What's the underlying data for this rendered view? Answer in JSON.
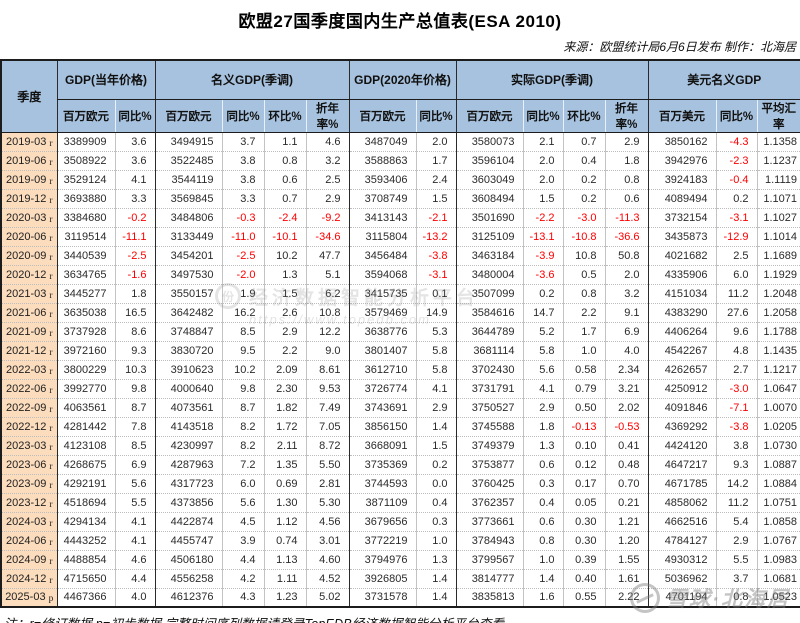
{
  "title": "欧盟27国季度国内生产总值表(ESA 2010)",
  "source_note": "来源：欧盟统计局6月6日发布 制作：北海居",
  "footer_note": "注：r=修订数据 p=初步数据 完整时间序列数据请登录TopEDB经济数据智能分析平台查看",
  "watermarks": {
    "center_badge": "份",
    "center_line1": "经济数据智能分析平台",
    "center_line2": "https://www.topedb.com",
    "corner_text": "雪球·北海居"
  },
  "colors": {
    "header_bg": "#a7c2de",
    "quarter_bg": "#fbdcbd",
    "negative": "#fe0000",
    "border_dark": "#1c1c1c"
  },
  "table": {
    "quarter_header": "季度",
    "groups": [
      {
        "label": "GDP(当年价格)",
        "subcols": [
          "百万欧元",
          "同比%"
        ]
      },
      {
        "label": "名义GDP(季调)",
        "subcols": [
          "百万欧元",
          "同比%",
          "环比%",
          "折年率%"
        ]
      },
      {
        "label": "GDP(2020年价格)",
        "subcols": [
          "百万欧元",
          "同比%"
        ]
      },
      {
        "label": "实际GDP(季调)",
        "subcols": [
          "百万欧元",
          "同比%",
          "环比%",
          "折年率%"
        ]
      },
      {
        "label": "美元名义GDP",
        "subcols": [
          "百万美元",
          "同比%",
          "平均汇率"
        ]
      }
    ],
    "group_start_indices": [
      0,
      2,
      6,
      8,
      12
    ],
    "rows": [
      {
        "quarter": "2019-03",
        "flag": "r",
        "values": [
          "3389909",
          "3.6",
          "3494915",
          "3.7",
          "1.1",
          "4.6",
          "3487049",
          "2.0",
          "3580073",
          "2.1",
          "0.7",
          "2.9",
          "3850162",
          "-4.3",
          "1.1358"
        ]
      },
      {
        "quarter": "2019-06",
        "flag": "r",
        "values": [
          "3508922",
          "3.6",
          "3522485",
          "3.8",
          "0.8",
          "3.2",
          "3588863",
          "1.7",
          "3596104",
          "2.0",
          "0.4",
          "1.8",
          "3942976",
          "-2.3",
          "1.1237"
        ]
      },
      {
        "quarter": "2019-09",
        "flag": "r",
        "values": [
          "3529124",
          "4.1",
          "3544119",
          "3.8",
          "0.6",
          "2.5",
          "3593406",
          "2.4",
          "3603049",
          "2.0",
          "0.2",
          "0.8",
          "3924183",
          "-0.4",
          "1.1119"
        ]
      },
      {
        "quarter": "2019-12",
        "flag": "r",
        "values": [
          "3693880",
          "3.3",
          "3569845",
          "3.3",
          "0.7",
          "2.9",
          "3708749",
          "1.5",
          "3608494",
          "1.5",
          "0.2",
          "0.6",
          "4089494",
          "0.2",
          "1.1071"
        ]
      },
      {
        "quarter": "2020-03",
        "flag": "r",
        "values": [
          "3384680",
          "-0.2",
          "3484806",
          "-0.3",
          "-2.4",
          "-9.2",
          "3413143",
          "-2.1",
          "3501690",
          "-2.2",
          "-3.0",
          "-11.3",
          "3732154",
          "-3.1",
          "1.1027"
        ]
      },
      {
        "quarter": "2020-06",
        "flag": "r",
        "values": [
          "3119514",
          "-11.1",
          "3133449",
          "-11.0",
          "-10.1",
          "-34.6",
          "3115804",
          "-13.2",
          "3125109",
          "-13.1",
          "-10.8",
          "-36.6",
          "3435873",
          "-12.9",
          "1.1014"
        ]
      },
      {
        "quarter": "2020-09",
        "flag": "r",
        "values": [
          "3440539",
          "-2.5",
          "3454201",
          "-2.5",
          "10.2",
          "47.7",
          "3456484",
          "-3.8",
          "3463184",
          "-3.9",
          "10.8",
          "50.8",
          "4021682",
          "2.5",
          "1.1689"
        ]
      },
      {
        "quarter": "2020-12",
        "flag": "r",
        "values": [
          "3634765",
          "-1.6",
          "3497530",
          "-2.0",
          "1.3",
          "5.1",
          "3594068",
          "-3.1",
          "3480004",
          "-3.6",
          "0.5",
          "2.0",
          "4335906",
          "6.0",
          "1.1929"
        ]
      },
      {
        "quarter": "2021-03",
        "flag": "r",
        "values": [
          "3445277",
          "1.8",
          "3550157",
          "1.9",
          "1.5",
          "6.2",
          "3415735",
          "0.1",
          "3507099",
          "0.2",
          "0.8",
          "3.2",
          "4151034",
          "11.2",
          "1.2048"
        ]
      },
      {
        "quarter": "2021-06",
        "flag": "r",
        "values": [
          "3635038",
          "16.5",
          "3642482",
          "16.2",
          "2.6",
          "10.8",
          "3579469",
          "14.9",
          "3584616",
          "14.7",
          "2.2",
          "9.1",
          "4383290",
          "27.6",
          "1.2058"
        ]
      },
      {
        "quarter": "2021-09",
        "flag": "r",
        "values": [
          "3737928",
          "8.6",
          "3748847",
          "8.5",
          "2.9",
          "12.2",
          "3638776",
          "5.3",
          "3644789",
          "5.2",
          "1.7",
          "6.9",
          "4406264",
          "9.6",
          "1.1788"
        ]
      },
      {
        "quarter": "2021-12",
        "flag": "r",
        "values": [
          "3972160",
          "9.3",
          "3830720",
          "9.5",
          "2.2",
          "9.0",
          "3801407",
          "5.8",
          "3681114",
          "5.8",
          "1.0",
          "4.0",
          "4542267",
          "4.8",
          "1.1435"
        ]
      },
      {
        "quarter": "2022-03",
        "flag": "r",
        "values": [
          "3800229",
          "10.3",
          "3910623",
          "10.2",
          "2.09",
          "8.61",
          "3612710",
          "5.8",
          "3702430",
          "5.6",
          "0.58",
          "2.34",
          "4262657",
          "2.7",
          "1.1217"
        ]
      },
      {
        "quarter": "2022-06",
        "flag": "r",
        "values": [
          "3992770",
          "9.8",
          "4000640",
          "9.8",
          "2.30",
          "9.53",
          "3726774",
          "4.1",
          "3731791",
          "4.1",
          "0.79",
          "3.21",
          "4250912",
          "-3.0",
          "1.0647"
        ]
      },
      {
        "quarter": "2022-09",
        "flag": "r",
        "values": [
          "4063561",
          "8.7",
          "4073561",
          "8.7",
          "1.82",
          "7.49",
          "3743691",
          "2.9",
          "3750527",
          "2.9",
          "0.50",
          "2.02",
          "4091846",
          "-7.1",
          "1.0070"
        ]
      },
      {
        "quarter": "2022-12",
        "flag": "r",
        "values": [
          "4281442",
          "7.8",
          "4143518",
          "8.2",
          "1.72",
          "7.05",
          "3856150",
          "1.4",
          "3745588",
          "1.8",
          "-0.13",
          "-0.53",
          "4369292",
          "-3.8",
          "1.0205"
        ]
      },
      {
        "quarter": "2023-03",
        "flag": "r",
        "values": [
          "4123108",
          "8.5",
          "4230997",
          "8.2",
          "2.11",
          "8.72",
          "3668091",
          "1.5",
          "3749379",
          "1.3",
          "0.10",
          "0.41",
          "4424120",
          "3.8",
          "1.0730"
        ]
      },
      {
        "quarter": "2023-06",
        "flag": "r",
        "values": [
          "4268675",
          "6.9",
          "4287963",
          "7.2",
          "1.35",
          "5.50",
          "3735369",
          "0.2",
          "3753877",
          "0.6",
          "0.12",
          "0.48",
          "4647217",
          "9.3",
          "1.0887"
        ]
      },
      {
        "quarter": "2023-09",
        "flag": "r",
        "values": [
          "4292191",
          "5.6",
          "4317723",
          "6.0",
          "0.69",
          "2.81",
          "3744593",
          "0.0",
          "3760425",
          "0.3",
          "0.17",
          "0.70",
          "4671785",
          "14.2",
          "1.0884"
        ]
      },
      {
        "quarter": "2023-12",
        "flag": "r",
        "values": [
          "4518694",
          "5.5",
          "4373856",
          "5.6",
          "1.30",
          "5.30",
          "3871109",
          "0.4",
          "3762357",
          "0.4",
          "0.05",
          "0.21",
          "4858062",
          "11.2",
          "1.0751"
        ]
      },
      {
        "quarter": "2024-03",
        "flag": "r",
        "values": [
          "4294134",
          "4.1",
          "4422874",
          "4.5",
          "1.12",
          "4.56",
          "3679656",
          "0.3",
          "3773661",
          "0.6",
          "0.30",
          "1.21",
          "4662516",
          "5.4",
          "1.0858"
        ]
      },
      {
        "quarter": "2024-06",
        "flag": "r",
        "values": [
          "4443252",
          "4.1",
          "4455747",
          "3.9",
          "0.74",
          "3.01",
          "3772219",
          "1.0",
          "3784943",
          "0.8",
          "0.30",
          "1.20",
          "4784127",
          "2.9",
          "1.0767"
        ]
      },
      {
        "quarter": "2024-09",
        "flag": "r",
        "values": [
          "4488854",
          "4.6",
          "4506180",
          "4.4",
          "1.13",
          "4.60",
          "3794976",
          "1.3",
          "3799567",
          "1.0",
          "0.39",
          "1.55",
          "4930312",
          "5.5",
          "1.0983"
        ]
      },
      {
        "quarter": "2024-12",
        "flag": "r",
        "values": [
          "4715650",
          "4.4",
          "4556258",
          "4.2",
          "1.11",
          "4.52",
          "3926805",
          "1.4",
          "3814777",
          "1.4",
          "0.40",
          "1.61",
          "5036962",
          "3.7",
          "1.0681"
        ]
      },
      {
        "quarter": "2025-03",
        "flag": "p",
        "values": [
          "4467366",
          "4.0",
          "4612376",
          "4.3",
          "1.23",
          "5.02",
          "3731578",
          "1.4",
          "3835813",
          "1.6",
          "0.55",
          "2.22",
          "4701194",
          "0.8",
          "1.0523"
        ]
      }
    ]
  }
}
